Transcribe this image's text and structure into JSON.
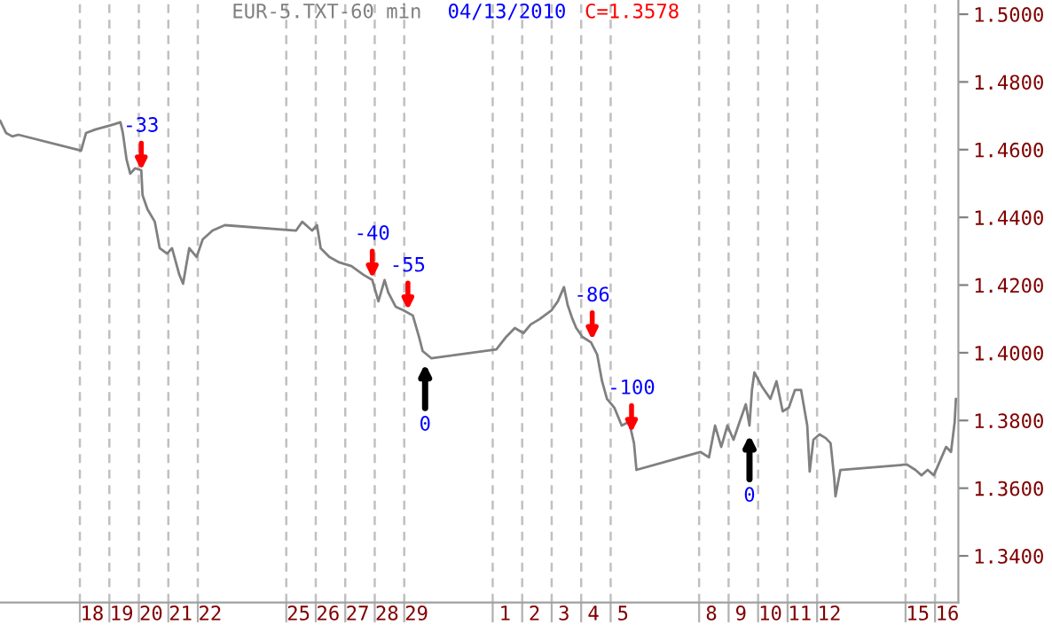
{
  "chart_data": {
    "type": "line",
    "title": "EUR-5.TXT-60 min",
    "subtitle": "04/13/2010",
    "annotations": [
      "C=1.3578",
      {
        "text": "-33",
        "x": "2010-01-20T02:00",
        "y": 1.4539
      },
      {
        "text": "-40",
        "x": "2010-01-27T22:00",
        "y": 1.422
      },
      {
        "text": "-55",
        "x": "2010-01-29T03:00",
        "y": 1.4126
      },
      {
        "text": "-86",
        "x": "2010-02-04T09:00",
        "y": 1.4038
      },
      {
        "text": "-100",
        "x": "2010-02-05T17:00",
        "y": 1.3764
      },
      {
        "text": "0",
        "x": "2010-01-29T17:00",
        "y": 1.3975
      },
      {
        "text": "0",
        "x": "2010-02-09T17:00",
        "y": 1.3765
      }
    ],
    "x": [
      "2010-01-15T07:00",
      "2010-01-15T12:00",
      "2010-01-15T17:00",
      "2010-01-15T22:00",
      "2010-01-18T01:00",
      "2010-01-18T05:00",
      "2010-01-18T13:00",
      "2010-01-18T23:00",
      "2010-01-19T04:00",
      "2010-01-19T09:00",
      "2010-01-19T11:00",
      "2010-01-19T14:00",
      "2010-01-19T17:00",
      "2010-01-19T21:00",
      "2010-01-20T02:00",
      "2010-01-20T03:00",
      "2010-01-20T07:00",
      "2010-01-20T13:00",
      "2010-01-20T17:00",
      "2010-01-20T23:00",
      "2010-01-21T03:00",
      "2010-01-21T09:00",
      "2010-01-21T12:00",
      "2010-01-21T17:00",
      "2010-01-21T23:00",
      "2010-01-22T04:00",
      "2010-01-22T12:00",
      "2010-01-22T22:00",
      "2010-01-25T08:00",
      "2010-01-25T13:00",
      "2010-01-25T21:00",
      "2010-01-26T01:00",
      "2010-01-26T04:00",
      "2010-01-26T11:00",
      "2010-01-26T19:00",
      "2010-01-27T05:00",
      "2010-01-27T15:00",
      "2010-01-27T22:00",
      "2010-01-28T03:00",
      "2010-01-28T08:00",
      "2010-01-28T11:00",
      "2010-01-28T17:00",
      "2010-01-28T23:00",
      "2010-01-29T07:00",
      "2010-01-29T12:00",
      "2010-01-29T15:00",
      "2010-01-29T22:00",
      "2010-02-01T03:00",
      "2010-02-01T11:00",
      "2010-02-01T18:00",
      "2010-02-02T01:00",
      "2010-02-02T07:00",
      "2010-02-02T14:00",
      "2010-02-03T00:00",
      "2010-02-03T05:00",
      "2010-02-03T10:00",
      "2010-02-03T13:00",
      "2010-02-03T17:00",
      "2010-02-03T20:00",
      "2010-02-04T01:00",
      "2010-02-04T08:00",
      "2010-02-04T13:00",
      "2010-02-04T17:00",
      "2010-02-04T21:00",
      "2010-02-05T03:00",
      "2010-02-05T09:00",
      "2010-02-05T15:00",
      "2010-02-05T19:00",
      "2010-02-05T21:00",
      "2010-02-08T01:00",
      "2010-02-08T08:00",
      "2010-02-08T13:00",
      "2010-02-08T18:00",
      "2010-02-08T23:00",
      "2010-02-09T04:00",
      "2010-02-09T09:00",
      "2010-02-09T14:00",
      "2010-02-09T17:00",
      "2010-02-09T19:00",
      "2010-02-09T21:00",
      "2010-02-10T03:00",
      "2010-02-10T10:00",
      "2010-02-10T15:00",
      "2010-02-10T20:00",
      "2010-02-11T01:00",
      "2010-02-11T06:00",
      "2010-02-11T11:00",
      "2010-02-11T16:00",
      "2010-02-11T18:00",
      "2010-02-11T21:00",
      "2010-02-12T02:00",
      "2010-02-12T07:00",
      "2010-02-12T11:00",
      "2010-02-12T14:00",
      "2010-02-12T15:00",
      "2010-02-12T19:00",
      "2010-02-15T01:00",
      "2010-02-15T08:00",
      "2010-02-15T13:00",
      "2010-02-15T18:00",
      "2010-02-15T23:00",
      "2010-02-16T04:00",
      "2010-02-16T09:00",
      "2010-02-16T13:00",
      "2010-02-16T16:00",
      "2010-02-16T17:00"
    ],
    "series": [
      {
        "color": "#808080",
        "values": [
          1.4686,
          1.4649,
          1.4639,
          1.4644,
          1.4597,
          1.4649,
          1.466,
          1.467,
          1.4675,
          1.4681,
          1.4649,
          1.4571,
          1.4529,
          1.4545,
          1.4539,
          1.4466,
          1.4424,
          1.4387,
          1.4309,
          1.4293,
          1.4309,
          1.423,
          1.4204,
          1.4309,
          1.4283,
          1.4335,
          1.4361,
          1.4377,
          1.4361,
          1.4387,
          1.4361,
          1.4377,
          1.4309,
          1.4283,
          1.4267,
          1.4256,
          1.423,
          1.4215,
          1.4152,
          1.4215,
          1.4178,
          1.4136,
          1.4126,
          1.411,
          1.4047,
          1.4005,
          1.3984,
          1.401,
          1.4047,
          1.4073,
          1.4058,
          1.4084,
          1.4099,
          1.4126,
          1.4152,
          1.4194,
          1.4141,
          1.4099,
          1.4073,
          1.4047,
          1.4031,
          1.3995,
          1.3916,
          1.3864,
          1.3838,
          1.3785,
          1.3796,
          1.3733,
          1.3654,
          1.3707,
          1.3691,
          1.3785,
          1.3722,
          1.3785,
          1.3743,
          1.3796,
          1.3848,
          1.3785,
          1.389,
          1.3942,
          1.3901,
          1.3864,
          1.3916,
          1.3827,
          1.3838,
          1.389,
          1.389,
          1.3785,
          1.3649,
          1.3743,
          1.3759,
          1.3748,
          1.3733,
          1.3628,
          1.3576,
          1.3654,
          1.367,
          1.3654,
          1.3638,
          1.3654,
          1.3638,
          1.368,
          1.3722,
          1.3707,
          1.3796,
          1.3864
        ]
      }
    ],
    "xlim": [
      "2010-01-15T07:00",
      "2010-02-16T19:00"
    ],
    "xticks": [
      {
        "value": "2010-01-18",
        "label": null
      },
      {
        "value": "2010-01-18T10:00",
        "label": "18"
      },
      {
        "value": "2010-01-19",
        "label": null
      },
      {
        "value": "2010-01-19T10:00",
        "label": "19"
      },
      {
        "value": "2010-01-20",
        "label": null
      },
      {
        "value": "2010-01-20T10:00",
        "label": "20"
      },
      {
        "value": "2010-01-21",
        "label": null
      },
      {
        "value": "2010-01-21T10:00",
        "label": "21"
      },
      {
        "value": "2010-01-22",
        "label": null
      },
      {
        "value": "2010-01-22T10:00",
        "label": "22"
      },
      {
        "value": "2010-01-25",
        "label": null
      },
      {
        "value": "2010-01-25T10:00",
        "label": "25"
      },
      {
        "value": "2010-01-26",
        "label": null
      },
      {
        "value": "2010-01-26T10:00",
        "label": "26"
      },
      {
        "value": "2010-01-27",
        "label": null
      },
      {
        "value": "2010-01-27T10:00",
        "label": "27"
      },
      {
        "value": "2010-01-28",
        "label": null
      },
      {
        "value": "2010-01-28T10:00",
        "label": "28"
      },
      {
        "value": "2010-01-29",
        "label": null
      },
      {
        "value": "2010-01-29T10:00",
        "label": "29"
      },
      {
        "value": "2010-02-01",
        "label": null
      },
      {
        "value": "2010-02-01T10:00",
        "label": "1"
      },
      {
        "value": "2010-02-02",
        "label": null
      },
      {
        "value": "2010-02-02T10:00",
        "label": "2"
      },
      {
        "value": "2010-02-03",
        "label": null
      },
      {
        "value": "2010-02-03T10:00",
        "label": "3"
      },
      {
        "value": "2010-02-04",
        "label": null
      },
      {
        "value": "2010-02-04T10:00",
        "label": "4"
      },
      {
        "value": "2010-02-05",
        "label": null
      },
      {
        "value": "2010-02-05T10:00",
        "label": "5"
      },
      {
        "value": "2010-02-08",
        "label": null
      },
      {
        "value": "2010-02-08T10:00",
        "label": "8"
      },
      {
        "value": "2010-02-09",
        "label": null
      },
      {
        "value": "2010-02-09T10:00",
        "label": "9"
      },
      {
        "value": "2010-02-10",
        "label": null
      },
      {
        "value": "2010-02-10T10:00",
        "label": "10"
      },
      {
        "value": "2010-02-11",
        "label": null
      },
      {
        "value": "2010-02-11T10:00",
        "label": "11"
      },
      {
        "value": "2010-02-12",
        "label": null
      },
      {
        "value": "2010-02-12T10:00",
        "label": "12"
      },
      {
        "value": "2010-02-15",
        "label": null
      },
      {
        "value": "2010-02-15T10:00",
        "label": "15"
      },
      {
        "value": "2010-02-16",
        "label": null
      },
      {
        "value": "2010-02-16T10:00",
        "label": "16"
      }
    ],
    "ylim": [
      1.3262,
      1.5042
    ],
    "yticks": [
      {
        "value": 1.34,
        "label": "1.3400"
      },
      {
        "value": 1.36,
        "label": "1.3600"
      },
      {
        "value": 1.38,
        "label": "1.3800"
      },
      {
        "value": 1.4,
        "label": "1.4000"
      },
      {
        "value": 1.42,
        "label": "1.4200"
      },
      {
        "value": 1.44,
        "label": "1.4400"
      },
      {
        "value": 1.46,
        "label": "1.4600"
      },
      {
        "value": 1.48,
        "label": "1.4800"
      },
      {
        "value": 1.5,
        "label": "1.5000"
      }
    ],
    "grid": "x"
  }
}
